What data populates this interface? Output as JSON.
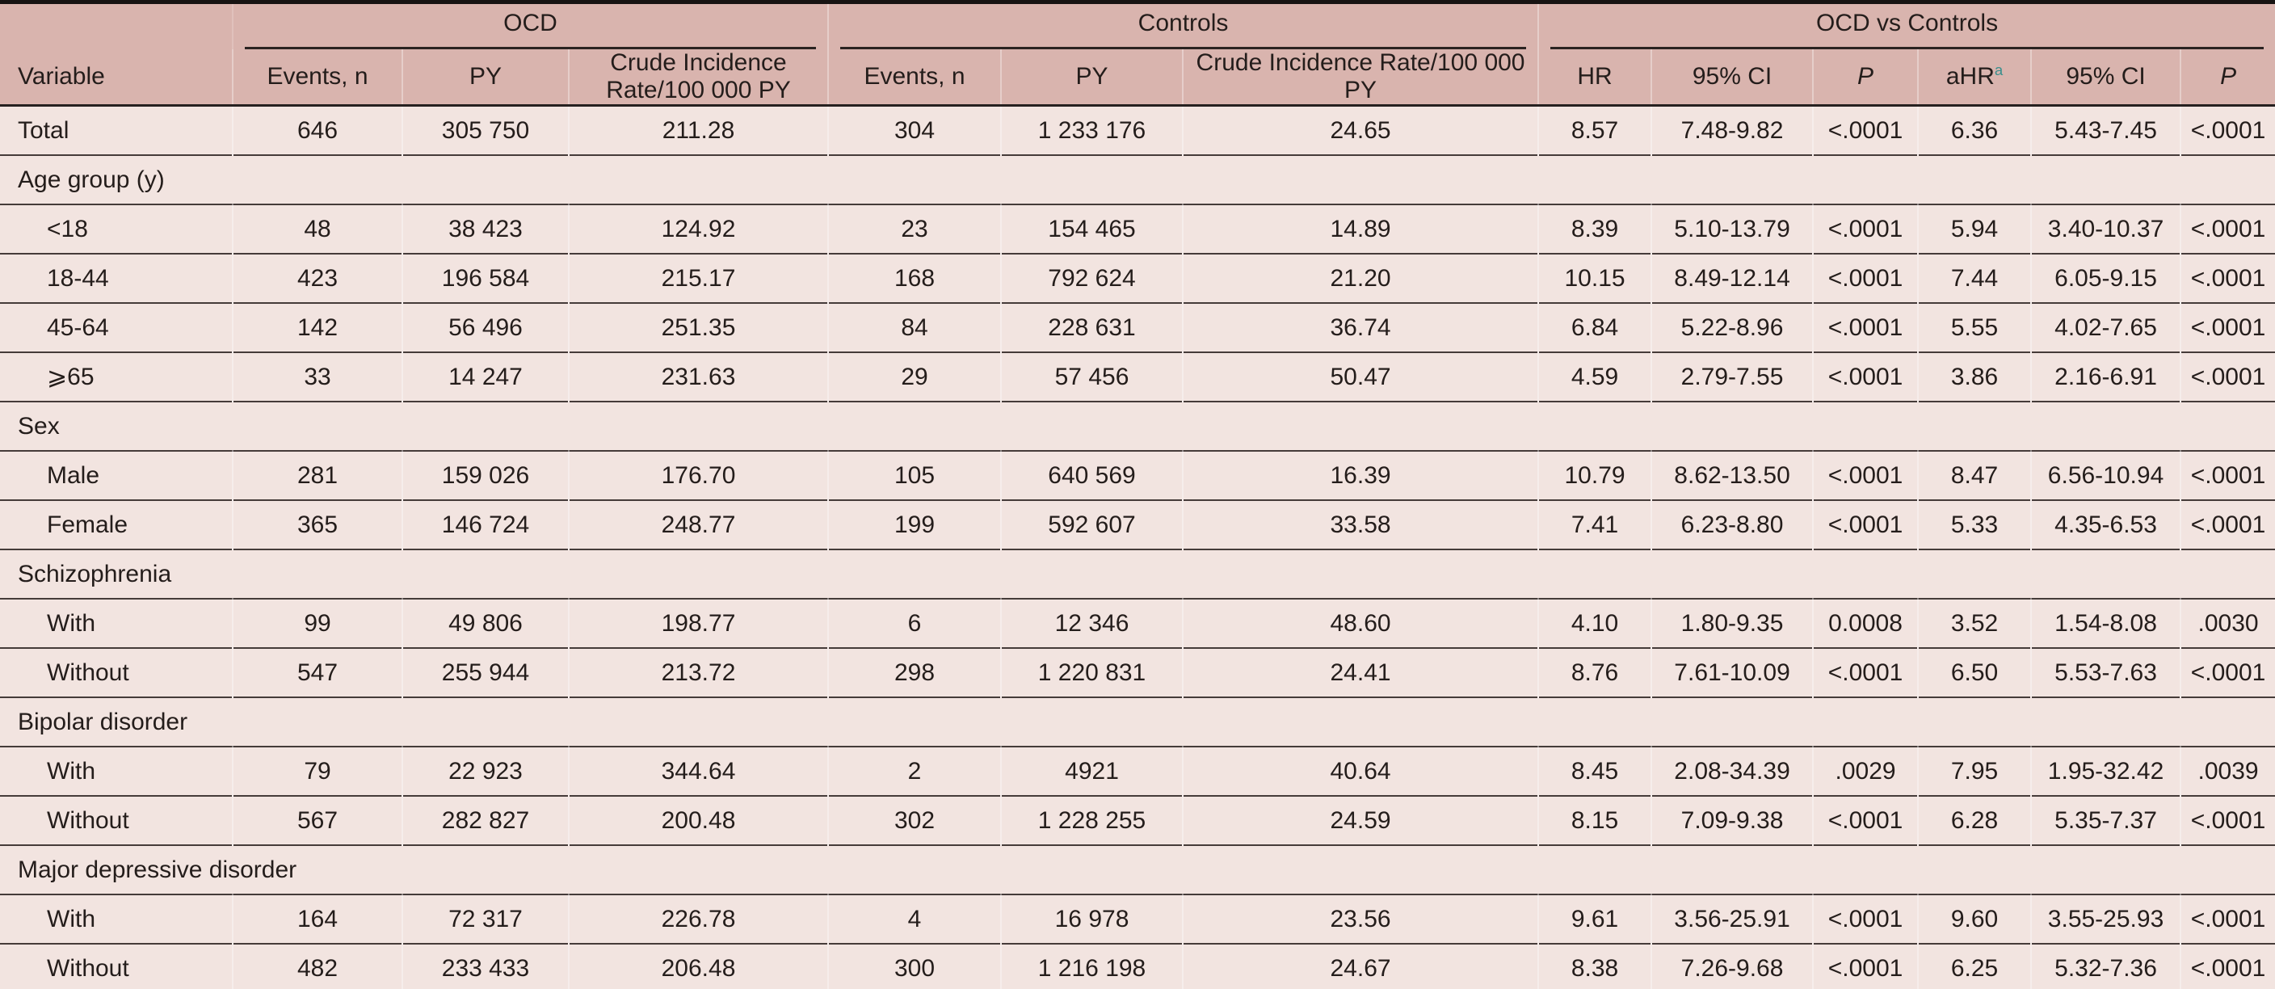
{
  "table": {
    "groups": {
      "ocd": "OCD",
      "controls": "Controls",
      "comparison": "OCD vs Controls"
    },
    "header": {
      "variable": "Variable",
      "events_n": "Events, n",
      "py": "PY",
      "crude": "Crude Incidence Rate/100 000 PY",
      "hr": "HR",
      "ci": "95% CI",
      "p": "P",
      "ahr": "aHR",
      "ahr_sup": "a"
    },
    "rows": [
      {
        "type": "data",
        "indent": 0,
        "label": "Total",
        "values": [
          "646",
          "305 750",
          "211.28",
          "304",
          "1 233 176",
          "24.65",
          "8.57",
          "7.48-9.82",
          "<.0001",
          "6.36",
          "5.43-7.45",
          "<.0001"
        ]
      },
      {
        "type": "section",
        "label": "Age group (y)"
      },
      {
        "type": "data",
        "indent": 1,
        "label": "<18",
        "values": [
          "48",
          "38 423",
          "124.92",
          "23",
          "154 465",
          "14.89",
          "8.39",
          "5.10-13.79",
          "<.0001",
          "5.94",
          "3.40-10.37",
          "<.0001"
        ]
      },
      {
        "type": "data",
        "indent": 1,
        "label": "18-44",
        "values": [
          "423",
          "196 584",
          "215.17",
          "168",
          "792 624",
          "21.20",
          "10.15",
          "8.49-12.14",
          "<.0001",
          "7.44",
          "6.05-9.15",
          "<.0001"
        ]
      },
      {
        "type": "data",
        "indent": 1,
        "label": "45-64",
        "values": [
          "142",
          "56 496",
          "251.35",
          "84",
          "228 631",
          "36.74",
          "6.84",
          "5.22-8.96",
          "<.0001",
          "5.55",
          "4.02-7.65",
          "<.0001"
        ]
      },
      {
        "type": "data",
        "indent": 1,
        "label": "⩾65",
        "values": [
          "33",
          "14 247",
          "231.63",
          "29",
          "57 456",
          "50.47",
          "4.59",
          "2.79-7.55",
          "<.0001",
          "3.86",
          "2.16-6.91",
          "<.0001"
        ]
      },
      {
        "type": "section",
        "label": "Sex"
      },
      {
        "type": "data",
        "indent": 1,
        "label": "Male",
        "values": [
          "281",
          "159 026",
          "176.70",
          "105",
          "640 569",
          "16.39",
          "10.79",
          "8.62-13.50",
          "<.0001",
          "8.47",
          "6.56-10.94",
          "<.0001"
        ]
      },
      {
        "type": "data",
        "indent": 1,
        "label": "Female",
        "values": [
          "365",
          "146 724",
          "248.77",
          "199",
          "592 607",
          "33.58",
          "7.41",
          "6.23-8.80",
          "<.0001",
          "5.33",
          "4.35-6.53",
          "<.0001"
        ]
      },
      {
        "type": "section",
        "label": "Schizophrenia"
      },
      {
        "type": "data",
        "indent": 1,
        "label": "With",
        "values": [
          "99",
          "49 806",
          "198.77",
          "6",
          "12 346",
          "48.60",
          "4.10",
          "1.80-9.35",
          "0.0008",
          "3.52",
          "1.54-8.08",
          ".0030"
        ]
      },
      {
        "type": "data",
        "indent": 1,
        "label": "Without",
        "values": [
          "547",
          "255 944",
          "213.72",
          "298",
          "1 220 831",
          "24.41",
          "8.76",
          "7.61-10.09",
          "<.0001",
          "6.50",
          "5.53-7.63",
          "<.0001"
        ]
      },
      {
        "type": "section",
        "label": "Bipolar disorder"
      },
      {
        "type": "data",
        "indent": 1,
        "label": "With",
        "values": [
          "79",
          "22 923",
          "344.64",
          "2",
          "4921",
          "40.64",
          "8.45",
          "2.08-34.39",
          ".0029",
          "7.95",
          "1.95-32.42",
          ".0039"
        ]
      },
      {
        "type": "data",
        "indent": 1,
        "label": "Without",
        "values": [
          "567",
          "282 827",
          "200.48",
          "302",
          "1 228 255",
          "24.59",
          "8.15",
          "7.09-9.38",
          "<.0001",
          "6.28",
          "5.35-7.37",
          "<.0001"
        ]
      },
      {
        "type": "section",
        "label": "Major depressive disorder"
      },
      {
        "type": "data",
        "indent": 1,
        "label": "With",
        "values": [
          "164",
          "72 317",
          "226.78",
          "4",
          "16 978",
          "23.56",
          "9.61",
          "3.56-25.91",
          "<.0001",
          "9.60",
          "3.55-25.93",
          "<.0001"
        ]
      },
      {
        "type": "data",
        "indent": 1,
        "label": "Without",
        "values": [
          "482",
          "233 433",
          "206.48",
          "300",
          "1 216 198",
          "24.67",
          "8.38",
          "7.26-9.68",
          "<.0001",
          "6.25",
          "5.32-7.36",
          "<.0001"
        ]
      }
    ]
  },
  "colors": {
    "header_background": "#d9b4ae",
    "body_background": "#f2e4e0",
    "rule_dark": "#171312",
    "row_rule": "#453b39",
    "footnote_superscript": "#3a8f8d",
    "text": "#241d1b"
  }
}
